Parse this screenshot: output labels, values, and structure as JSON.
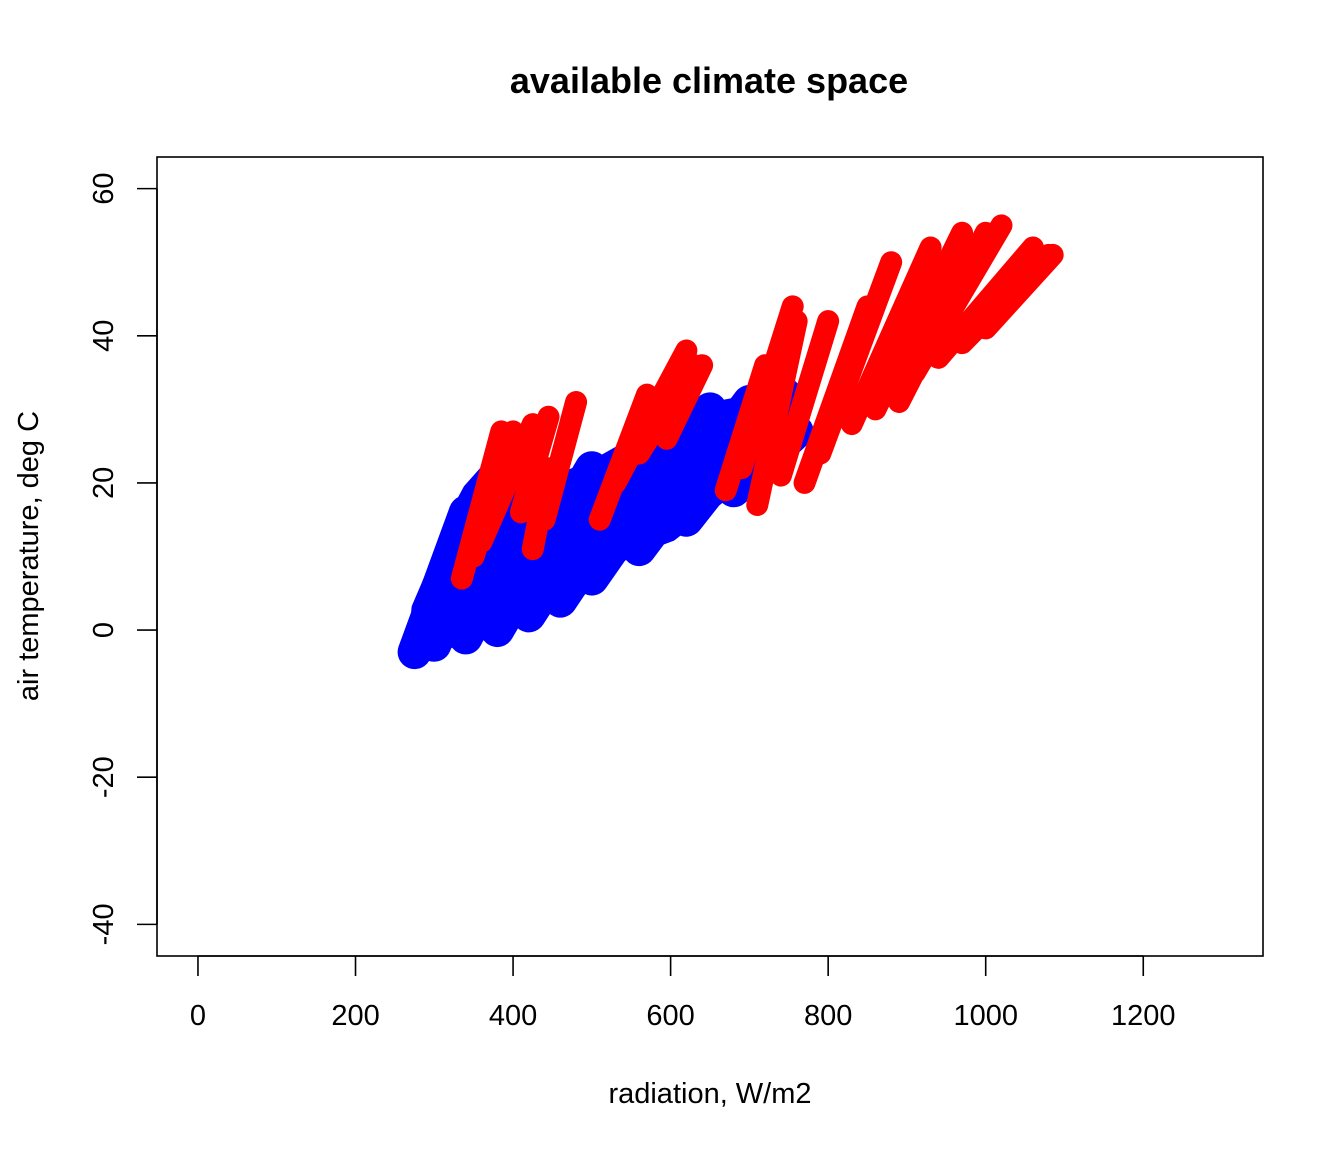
{
  "chart_data": {
    "type": "scatter",
    "title": "available climate space",
    "xlabel": "radiation, W/m2",
    "ylabel": "air temperature, deg C",
    "xlim": [
      -52,
      1352
    ],
    "ylim": [
      -44.3,
      64.3
    ],
    "xticks": [
      0,
      200,
      400,
      600,
      800,
      1000,
      1200
    ],
    "yticks": [
      -40,
      -20,
      0,
      20,
      40,
      60
    ],
    "xtick_labels": [
      "0",
      "200",
      "400",
      "600",
      "800",
      "1000",
      "1200"
    ],
    "ytick_labels": [
      "-40",
      "-20",
      "0",
      "20",
      "40",
      "60"
    ],
    "grid": false,
    "legend": "none",
    "series": [
      {
        "color": "#0000ff",
        "region": {
          "description_points": [
            [
              275,
              -3
            ],
            [
              280,
              3
            ],
            [
              300,
              8
            ],
            [
              320,
              14
            ],
            [
              345,
              19
            ],
            [
              370,
              22
            ],
            [
              400,
              24
            ],
            [
              450,
              20
            ],
            [
              500,
              22
            ],
            [
              550,
              25
            ],
            [
              600,
              28
            ],
            [
              650,
              30
            ],
            [
              700,
              31
            ],
            [
              740,
              32
            ],
            [
              760,
              26
            ],
            [
              740,
              24
            ],
            [
              700,
              23
            ],
            [
              660,
              18
            ],
            [
              600,
              13
            ],
            [
              550,
              11
            ],
            [
              500,
              8
            ],
            [
              460,
              5
            ],
            [
              420,
              2
            ],
            [
              380,
              0
            ],
            [
              340,
              -1
            ],
            [
              300,
              -2
            ],
            [
              280,
              -3
            ]
          ]
        },
        "strands": [
          [
            [
              275,
              -3
            ],
            [
              340,
              16
            ]
          ],
          [
            [
              300,
              -2
            ],
            [
              395,
              22
            ]
          ],
          [
            [
              340,
              -1
            ],
            [
              440,
              20
            ]
          ],
          [
            [
              380,
              0
            ],
            [
              500,
              22
            ]
          ],
          [
            [
              420,
              2
            ],
            [
              560,
              25
            ]
          ],
          [
            [
              460,
              4
            ],
            [
              610,
              28
            ]
          ],
          [
            [
              500,
              7
            ],
            [
              650,
              30
            ]
          ],
          [
            [
              560,
              11
            ],
            [
              700,
              31
            ]
          ],
          [
            [
              620,
              15
            ],
            [
              745,
              32
            ]
          ],
          [
            [
              680,
              19
            ],
            [
              760,
              27
            ]
          ]
        ]
      },
      {
        "color": "#ff0000",
        "strands": [
          [
            [
              335,
              7
            ],
            [
              385,
              27
            ]
          ],
          [
            [
              350,
              10
            ],
            [
              400,
              27
            ]
          ],
          [
            [
              360,
              12
            ],
            [
              425,
              28
            ]
          ],
          [
            [
              410,
              16
            ],
            [
              445,
              29
            ]
          ],
          [
            [
              425,
              11
            ],
            [
              445,
              22
            ]
          ],
          [
            [
              440,
              15
            ],
            [
              480,
              31
            ]
          ],
          [
            [
              510,
              15
            ],
            [
              570,
              32
            ]
          ],
          [
            [
              530,
              20
            ],
            [
              620,
              38
            ]
          ],
          [
            [
              560,
              24
            ],
            [
              630,
              36
            ]
          ],
          [
            [
              595,
              26
            ],
            [
              640,
              36
            ]
          ],
          [
            [
              670,
              19
            ],
            [
              720,
              36
            ]
          ],
          [
            [
              690,
              22
            ],
            [
              755,
              44
            ]
          ],
          [
            [
              710,
              17
            ],
            [
              760,
              42
            ]
          ],
          [
            [
              740,
              21
            ],
            [
              800,
              42
            ]
          ],
          [
            [
              770,
              20
            ],
            [
              850,
              44
            ]
          ],
          [
            [
              790,
              24
            ],
            [
              880,
              50
            ]
          ],
          [
            [
              830,
              28
            ],
            [
              930,
              52
            ]
          ],
          [
            [
              860,
              30
            ],
            [
              970,
              54
            ]
          ],
          [
            [
              890,
              31
            ],
            [
              1000,
              54
            ]
          ],
          [
            [
              910,
              35
            ],
            [
              1020,
              55
            ]
          ],
          [
            [
              940,
              37
            ],
            [
              1060,
              52
            ]
          ],
          [
            [
              970,
              39
            ],
            [
              1080,
              51
            ]
          ],
          [
            [
              1000,
              41
            ],
            [
              1085,
              51
            ]
          ]
        ]
      }
    ]
  }
}
